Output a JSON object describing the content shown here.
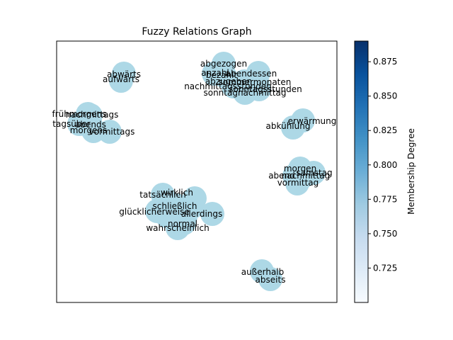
{
  "chart_data": {
    "type": "network",
    "title": "Fuzzy Relations Graph",
    "node_color": "#add8e6",
    "colorbar": {
      "label": "Membership Degree",
      "range": [
        0.7,
        0.89
      ],
      "ticks": [
        "0.725",
        "0.750",
        "0.775",
        "0.800",
        "0.825",
        "0.850",
        "0.875"
      ],
      "colormap": "Blues"
    },
    "clusters": [
      {
        "id": "c1",
        "words": [
          "abwärts",
          "aufwärts"
        ]
      },
      {
        "id": "c2",
        "words": [
          "abgezogen",
          "anzahl",
          "bezahlt",
          "abendessen",
          "abzugeben",
          "nachmittagsstunden",
          "sonntagsstunden",
          "sommermonaten",
          "sonntagnachmittag"
        ]
      },
      {
        "id": "c3",
        "words": [
          "frühmorgens",
          "nachmittags",
          "tagsüber",
          "abends",
          "morgens",
          "vormittags"
        ]
      },
      {
        "id": "c4",
        "words": [
          "erwärmung",
          "abkühlung"
        ]
      },
      {
        "id": "c5",
        "words": [
          "morgen",
          "samstag",
          "nachmittag",
          "abend",
          "vormittag"
        ]
      },
      {
        "id": "c6",
        "words": [
          "tatsächlich",
          "wirklich",
          "glücklicherweise",
          "schließlich",
          "allerdings",
          "normal",
          "wahrscheinlich"
        ]
      },
      {
        "id": "c7",
        "words": [
          "außerhalb",
          "abseits"
        ]
      }
    ]
  }
}
